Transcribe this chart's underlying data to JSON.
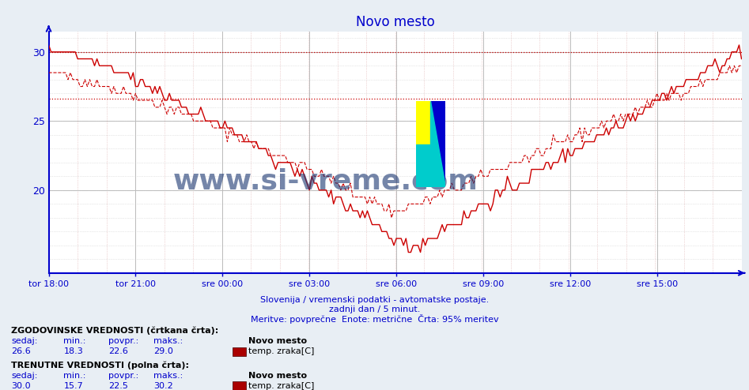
{
  "title": "Novo mesto",
  "title_color": "#0000cc",
  "background_color": "#e8eef4",
  "plot_bg_color": "#ffffff",
  "x_tick_labels": [
    "tor 18:00",
    "tor 21:00",
    "sre 00:00",
    "sre 03:00",
    "sre 06:00",
    "sre 09:00",
    "sre 12:00",
    "sre 15:00"
  ],
  "x_tick_positions": [
    0,
    36,
    72,
    108,
    144,
    180,
    216,
    252
  ],
  "n_points": 288,
  "ylim_min": 14.0,
  "ylim_max": 31.5,
  "yticks": [
    20,
    25,
    30
  ],
  "grid_color_major": "#cccccc",
  "grid_color_minor": "#dddddd",
  "axis_color": "#0000cc",
  "line_color": "#cc0000",
  "hline1_y": 30.0,
  "hline2_y": 26.6,
  "historical_sedaj": 26.6,
  "historical_min": 18.3,
  "historical_povpr": 22.6,
  "historical_maks": 29.0,
  "current_sedaj": 30.0,
  "current_min": 15.7,
  "current_povpr": 22.5,
  "current_maks": 30.2,
  "subtitle1": "Slovenija / vremenski podatki - avtomatske postaje.",
  "subtitle2": "zadnji dan / 5 minut.",
  "subtitle3": "Meritve: povprečne  Enote: metrične  Črta: 95% meritev",
  "legend_text1": "ZGODOVINSKE VREDNOSTI (črtkana črta):",
  "legend_text2": "TRENUTNE VREDNOSTI (polna črta):",
  "watermark_text": "www.si-vreme.com",
  "watermark_color": "#1a3570",
  "fig_width": 9.47,
  "fig_height": 4.94,
  "dpi": 100
}
